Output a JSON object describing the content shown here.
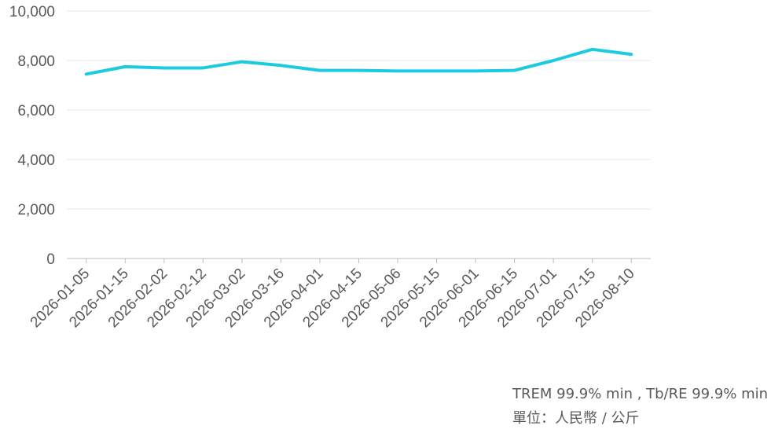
{
  "chart_data": {
    "type": "line",
    "categories": [
      "2026-01-05",
      "2026-01-15",
      "2026-02-02",
      "2026-02-12",
      "2026-03-02",
      "2026-03-16",
      "2026-04-01",
      "2026-04-15",
      "2026-05-06",
      "2026-05-15",
      "2026-06-01",
      "2026-06-15",
      "2026-07-01",
      "2026-07-15",
      "2026-08-10"
    ],
    "series": [
      {
        "values": [
          7450,
          7750,
          7700,
          7700,
          7950,
          7800,
          7600,
          7600,
          7575,
          7575,
          7575,
          7600,
          8000,
          8450,
          8250
        ]
      }
    ],
    "ylim": [
      0,
      10000
    ],
    "yticks": [
      0,
      2000,
      4000,
      6000,
      8000,
      10000
    ],
    "ytick_labels": [
      "0",
      "2,000",
      "4,000",
      "6,000",
      "8,000",
      "10,000"
    ],
    "grid": true,
    "legend": "none",
    "line_color": "#1bcbe0",
    "grid_color": "#e6e6e6",
    "axis_color": "#bfbfbf"
  },
  "notes": {
    "line1": "TREM 99.9% min , Tb/RE 99.9% min",
    "line2": "單位：人民幣 / 公斤"
  }
}
